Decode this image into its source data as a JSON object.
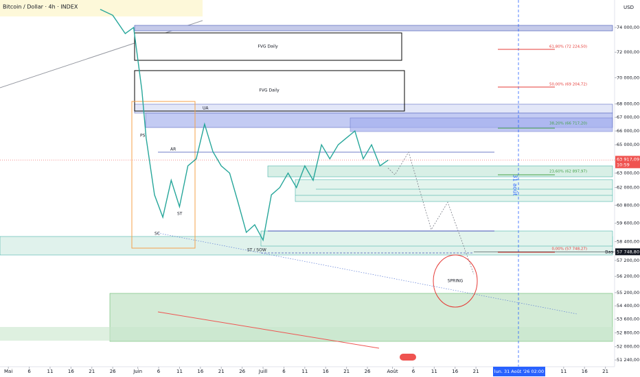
{
  "chart_data": {
    "type": "line",
    "title": "Bitcoin / Dollar · 4h · INDEX",
    "currency": "USD",
    "log": true,
    "ylim": [
      50860,
      76280
    ],
    "xlim": [
      -2,
      145.2
    ],
    "yticks": [
      {
        "value": 74000,
        "label": "74 000,00"
      },
      {
        "value": 72000,
        "label": "72 000,00"
      },
      {
        "value": 70000,
        "label": "70 000,00"
      },
      {
        "value": 68000,
        "label": "68 000,00"
      },
      {
        "value": 67000,
        "label": "67 000,00"
      },
      {
        "value": 66000,
        "label": "66 000,00"
      },
      {
        "value": 65000,
        "label": "65 000,00"
      },
      {
        "value": 63000,
        "label": "63 000,00"
      },
      {
        "value": 62000,
        "label": "62 000,00"
      },
      {
        "value": 60800,
        "label": "60 800,00"
      },
      {
        "value": 59600,
        "label": "59 600,00"
      },
      {
        "value": 58400,
        "label": "58 400,00"
      },
      {
        "value": 57200,
        "label": "57 200,00"
      },
      {
        "value": 56200,
        "label": "56 200,00"
      },
      {
        "value": 55200,
        "label": "55 200,00"
      },
      {
        "value": 54400,
        "label": "54 400,00"
      },
      {
        "value": 53600,
        "label": "53 600,00"
      },
      {
        "value": 52800,
        "label": "52 800,00"
      },
      {
        "value": 52000,
        "label": "52 000,00"
      },
      {
        "value": 51240,
        "label": "51 240,00"
      }
    ],
    "xticks": [
      {
        "value": 0,
        "label": "Mai"
      },
      {
        "value": 5,
        "label": "6"
      },
      {
        "value": 10,
        "label": "11"
      },
      {
        "value": 15,
        "label": "16"
      },
      {
        "value": 20,
        "label": "21"
      },
      {
        "value": 25,
        "label": "26"
      },
      {
        "value": 31,
        "label": "Juin"
      },
      {
        "value": 36,
        "label": "6"
      },
      {
        "value": 41,
        "label": "11"
      },
      {
        "value": 46,
        "label": "16"
      },
      {
        "value": 51,
        "label": "21"
      },
      {
        "value": 56,
        "label": "26"
      },
      {
        "value": 61,
        "label": "Juill"
      },
      {
        "value": 66,
        "label": "6"
      },
      {
        "value": 71,
        "label": "11"
      },
      {
        "value": 76,
        "label": "16"
      },
      {
        "value": 81,
        "label": "21"
      },
      {
        "value": 86,
        "label": "26"
      },
      {
        "value": 92,
        "label": "Août"
      },
      {
        "value": 97,
        "label": "6"
      },
      {
        "value": 102,
        "label": "11"
      },
      {
        "value": 107,
        "label": "16"
      },
      {
        "value": 112,
        "label": "21"
      },
      {
        "value": 133,
        "label": "11"
      },
      {
        "value": 138,
        "label": "16"
      },
      {
        "value": 143,
        "label": "21"
      }
    ],
    "x": [
      22,
      25,
      28,
      30,
      32,
      33,
      35,
      37,
      39,
      41,
      43,
      45,
      47,
      49,
      51,
      53,
      55,
      57,
      59,
      61,
      63,
      65,
      67,
      69,
      71,
      73,
      75,
      77,
      79,
      81,
      83,
      85,
      87,
      89,
      91
    ],
    "series": [
      {
        "name": "BTCUSD",
        "color": "#26a69a",
        "values": [
          75500,
          75000,
          73500,
          74000,
          69000,
          65500,
          61500,
          60000,
          62500,
          60700,
          63500,
          64000,
          66500,
          64500,
          63500,
          63000,
          61000,
          59000,
          59500,
          58500,
          61500,
          62000,
          63000,
          62000,
          63500,
          62500,
          65000,
          64000,
          65000,
          65500,
          66000,
          64000,
          65000,
          63500,
          63917.09
        ]
      }
    ],
    "last_price": {
      "value": 63917.09,
      "label": "63 917,09"
    },
    "last_time": "10:59",
    "low_label": "Bas",
    "low_price": {
      "value": 57748.8,
      "label": "57 748,80"
    },
    "crosshair_date": "lun. 31 Août '26   02:00",
    "crosshair_vertical": "31 août",
    "annotations": {
      "fvg_1": "FVG Daily",
      "fvg_2": "FVG Daily",
      "ua": "UA",
      "ps": "PS",
      "ar": "AR",
      "st": "ST",
      "sc": "SC",
      "st_sow": "ST / SOW",
      "spring": "SPRING"
    },
    "fib": [
      "61,80% (72 224,50)",
      "50,00% (69 204,72)",
      "38,20% (66 717,20)",
      "23,60% (62 897,97)",
      "0,00% (57 748,27)"
    ]
  }
}
